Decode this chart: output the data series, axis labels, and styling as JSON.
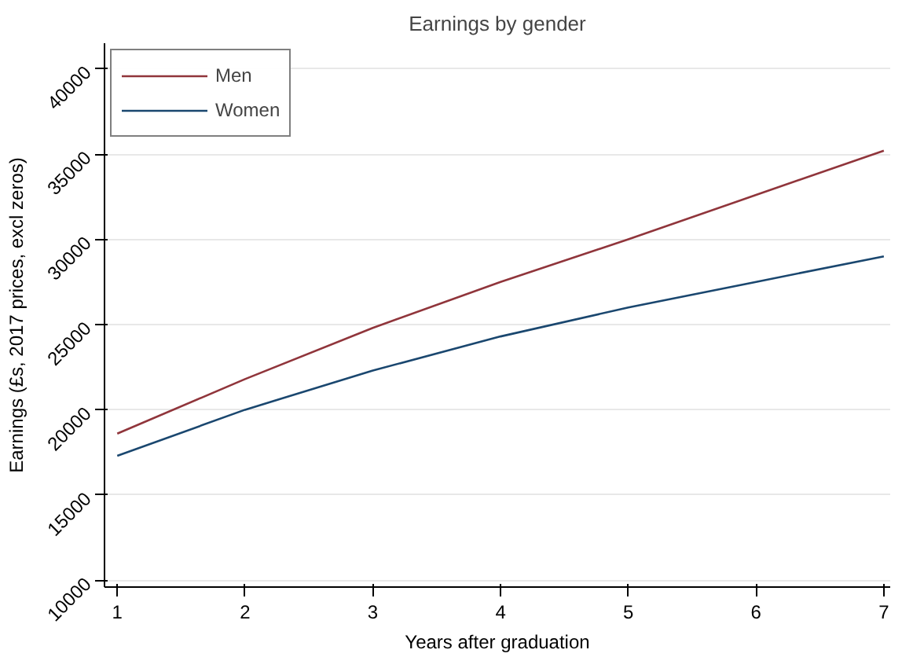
{
  "chart_data": {
    "type": "line",
    "title": "Earnings by gender",
    "xlabel": "Years after graduation",
    "ylabel": "Earnings (£s, 2017 prices, excl zeros)",
    "x": [
      1,
      2,
      3,
      4,
      5,
      6,
      7
    ],
    "series": [
      {
        "name": "Men",
        "color": "#90353b",
        "values": [
          18600,
          21800,
          24800,
          27500,
          30000,
          32600,
          35200
        ]
      },
      {
        "name": "Women",
        "color": "#1a476f",
        "values": [
          17300,
          20000,
          22300,
          24300,
          26000,
          27500,
          29000
        ]
      }
    ],
    "xlim": [
      0.9,
      7.05
    ],
    "xticks": [
      1,
      2,
      3,
      4,
      5,
      6,
      7
    ],
    "ylim": [
      9600,
      41500
    ],
    "yticks": [
      10000,
      15000,
      20000,
      25000,
      30000,
      35000,
      40000
    ],
    "grid": "y",
    "legend": "top left",
    "marker": "none",
    "line_style": "solid"
  }
}
